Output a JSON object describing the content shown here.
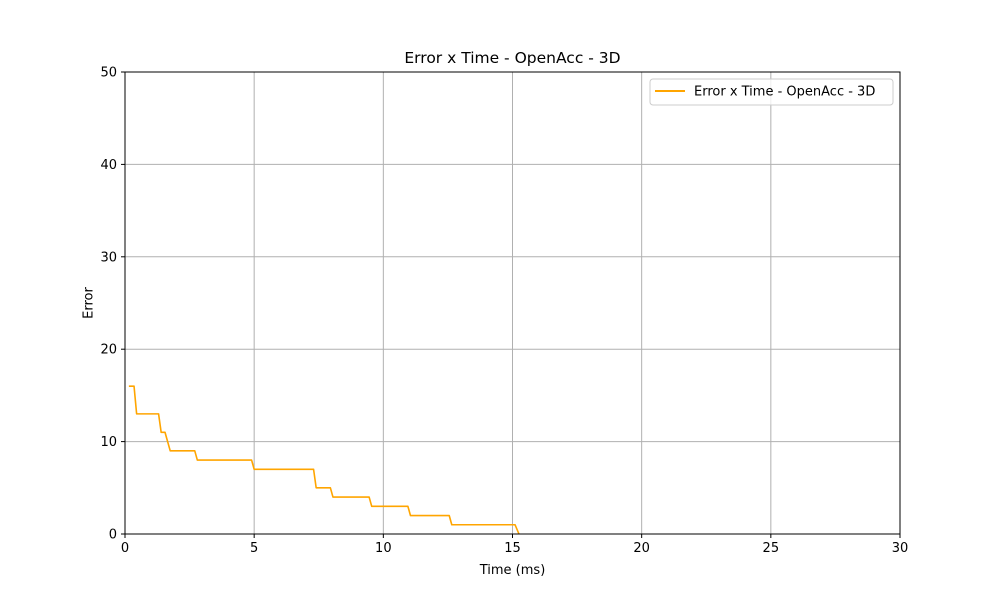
{
  "chart_data": {
    "type": "line",
    "title": "Error x Time - OpenAcc - 3D",
    "xlabel": "Time (ms)",
    "ylabel": "Error",
    "xlim": [
      0,
      30
    ],
    "ylim": [
      0,
      50
    ],
    "xticks": [
      0,
      5,
      10,
      15,
      20,
      25,
      30
    ],
    "yticks": [
      0,
      10,
      20,
      30,
      40,
      50
    ],
    "grid": true,
    "legend_position": "top-right",
    "series": [
      {
        "name": "Error x Time - OpenAcc - 3D",
        "color": "#ffa500",
        "x": [
          0.15,
          0.35,
          0.45,
          1.3,
          1.4,
          1.55,
          1.65,
          1.75,
          2.7,
          2.8,
          4.9,
          5.0,
          7.3,
          7.4,
          7.95,
          8.05,
          9.45,
          9.55,
          10.95,
          11.05,
          12.55,
          12.65,
          15.1,
          15.25
        ],
        "y": [
          16,
          16,
          13,
          13,
          11,
          11,
          10,
          9,
          9,
          8,
          8,
          7,
          7,
          5,
          5,
          4,
          4,
          3,
          3,
          2,
          2,
          1,
          1,
          0
        ]
      }
    ]
  }
}
